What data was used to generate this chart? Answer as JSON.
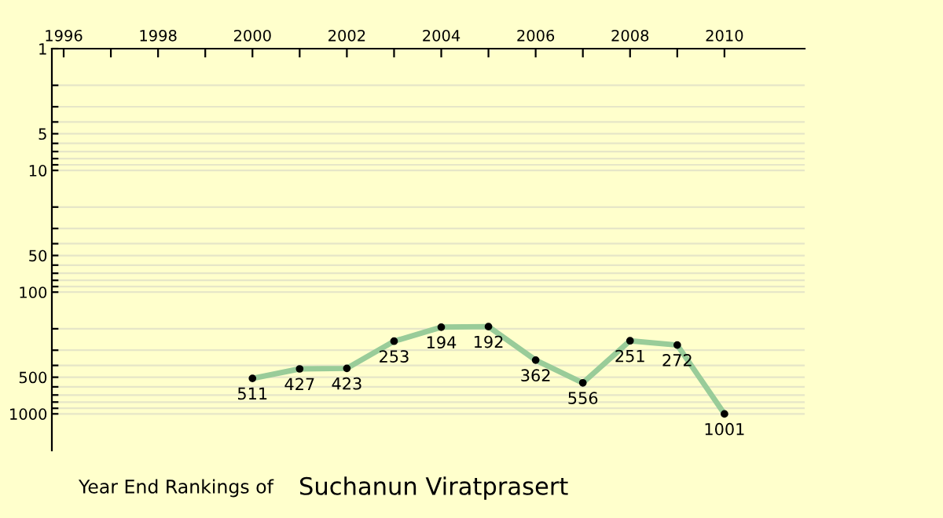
{
  "chart_data": {
    "type": "line",
    "title": "Year End Rankings of",
    "subtitle": "Suchanun Viratprasert",
    "x": [
      2000,
      2001,
      2002,
      2003,
      2004,
      2005,
      2006,
      2007,
      2008,
      2009,
      2010
    ],
    "series": [
      {
        "color": "#99cc99",
        "values": [
          511,
          427,
          423,
          253,
          194,
          192,
          362,
          556,
          251,
          272,
          1001
        ]
      }
    ],
    "data_labels": true,
    "marker": "circle",
    "line_style": "solid",
    "log": "y",
    "grid": "y",
    "xlim": [
      1995.75,
      2011.7
    ],
    "ylim": [
      2000,
      1
    ],
    "xticks": [
      1996,
      {
        "value": 1997,
        "label": null
      },
      1998,
      {
        "value": 1999,
        "label": null
      },
      2000,
      {
        "value": 2001,
        "label": null
      },
      2002,
      {
        "value": 2003,
        "label": null
      },
      2004,
      {
        "value": 2005,
        "label": null
      },
      2006,
      {
        "value": 2007,
        "label": null
      },
      2008,
      {
        "value": 2009,
        "label": null
      },
      2010
    ],
    "yticks": [
      1,
      {
        "value": 2,
        "label": null
      },
      {
        "value": 3,
        "label": null
      },
      {
        "value": 4,
        "label": null
      },
      5,
      {
        "value": 6,
        "label": null
      },
      {
        "value": 7,
        "label": null
      },
      {
        "value": 8,
        "label": null
      },
      {
        "value": 9,
        "label": null
      },
      10,
      {
        "value": 20,
        "label": null
      },
      {
        "value": 30,
        "label": null
      },
      {
        "value": 40,
        "label": null
      },
      50,
      {
        "value": 60,
        "label": null
      },
      {
        "value": 70,
        "label": null
      },
      {
        "value": 80,
        "label": null
      },
      {
        "value": 90,
        "label": null
      },
      100,
      {
        "value": 200,
        "label": null
      },
      {
        "value": 300,
        "label": null
      },
      {
        "value": 400,
        "label": null
      },
      500,
      {
        "value": 600,
        "label": null
      },
      {
        "value": 700,
        "label": null
      },
      {
        "value": 800,
        "label": null
      },
      {
        "value": 900,
        "label": null
      },
      1000
    ],
    "legend": false
  }
}
